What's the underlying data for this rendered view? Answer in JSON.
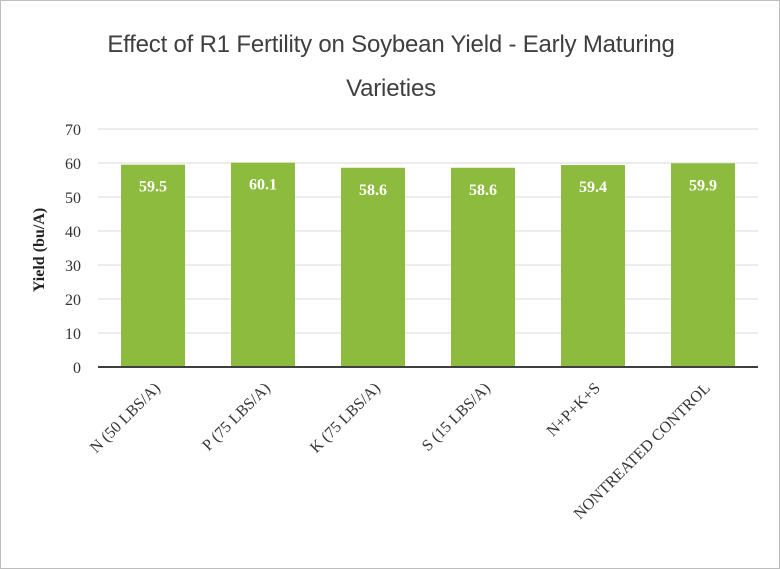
{
  "chart_data": {
    "type": "bar",
    "title": "Effect of R1 Fertility on Soybean Yield - Early Maturing Varieties",
    "xlabel": "",
    "ylabel": "Yield (bu/A)",
    "categories": [
      "N (50 LBS/A)",
      "P (75 LBS/A)",
      "K (75 LBS/A)",
      "S (15 LBS/A)",
      "N+P+K+S",
      "NONTREATED CONTROL"
    ],
    "values": [
      59.5,
      60.1,
      58.6,
      58.6,
      59.4,
      59.9
    ],
    "data_labels": [
      "59.5",
      "60.1",
      "58.6",
      "58.6",
      "59.4",
      "59.9"
    ],
    "ylim": [
      0,
      70
    ],
    "yticks": [
      0,
      10,
      20,
      30,
      40,
      50,
      60,
      70
    ],
    "grid": true,
    "legend": "none",
    "colors": {
      "bar": "#8dbb3e",
      "grid": "#d9d9d9",
      "axis": "#3f3f3f"
    }
  }
}
